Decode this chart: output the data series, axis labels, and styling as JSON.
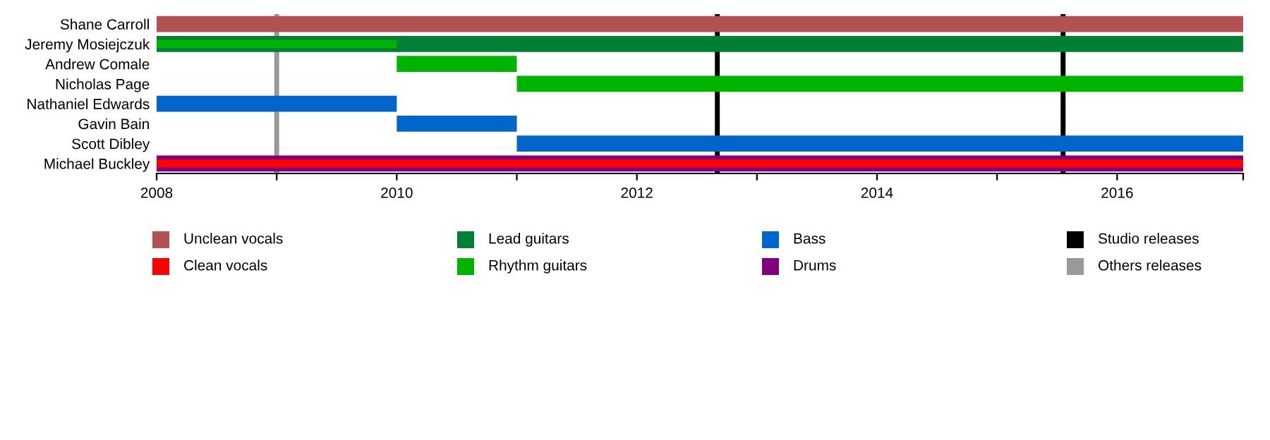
{
  "chart_data": {
    "type": "bar",
    "orientation": "horizontal",
    "categories": [
      "Shane Carroll",
      "Jeremy Mosiejczuk",
      "Andrew Comale",
      "Nicholas Page",
      "Nathaniel Edwards",
      "Gavin Bain",
      "Scott Dibley",
      "Michael Buckley"
    ],
    "series": [
      {
        "name": "Unclean vocals",
        "color": "#b35050",
        "base": [
          2008,
          null,
          null,
          null,
          null,
          null,
          null,
          null
        ],
        "values": [
          9.05,
          null,
          null,
          null,
          null,
          null,
          null,
          null
        ]
      },
      {
        "name": "Clean vocals",
        "color": "#ff0000",
        "base": [
          null,
          null,
          null,
          null,
          null,
          null,
          null,
          2008
        ],
        "values": [
          null,
          null,
          null,
          null,
          null,
          null,
          null,
          9.05
        ]
      },
      {
        "name": "Lead guitars",
        "color": "#008035",
        "base": [
          null,
          2008,
          null,
          null,
          null,
          null,
          null,
          null
        ],
        "values": [
          null,
          9.05,
          null,
          null,
          null,
          null,
          null,
          null
        ]
      },
      {
        "name": "Rhythm guitars",
        "color": "#00b400",
        "base": [
          null,
          2008,
          2010,
          2011,
          null,
          null,
          null,
          null
        ],
        "values": [
          null,
          2,
          1,
          6.05,
          null,
          null,
          null,
          null
        ]
      },
      {
        "name": "Bass",
        "color": "#0066cc",
        "base": [
          null,
          null,
          null,
          null,
          2008,
          2010,
          2011,
          null
        ],
        "values": [
          null,
          null,
          null,
          null,
          2,
          1,
          6.05,
          null
        ]
      },
      {
        "name": "Drums",
        "color": "#800080",
        "base": [
          null,
          null,
          null,
          null,
          null,
          null,
          null,
          2008
        ],
        "values": [
          null,
          null,
          null,
          null,
          null,
          null,
          null,
          9.05
        ]
      }
    ],
    "ref_lines": [
      {
        "axis": "x",
        "value": 2009,
        "label": "Others releases",
        "color": "#999999"
      },
      {
        "axis": "x",
        "value": 2012.67,
        "label": "Studio releases",
        "color": "#000000"
      },
      {
        "axis": "x",
        "value": 2015.55,
        "color": "#000000"
      }
    ],
    "xlim": [
      2008,
      2017.05
    ],
    "xticks": [
      2008,
      {
        "value": 2009,
        "label": null
      },
      2010,
      {
        "value": 2011,
        "label": null
      },
      2012,
      {
        "value": 2013,
        "label": null
      },
      2014,
      {
        "value": 2015,
        "label": null
      },
      2016,
      {
        "value": 2017.05,
        "label": null
      }
    ],
    "legend": "bottom",
    "grid": false
  }
}
